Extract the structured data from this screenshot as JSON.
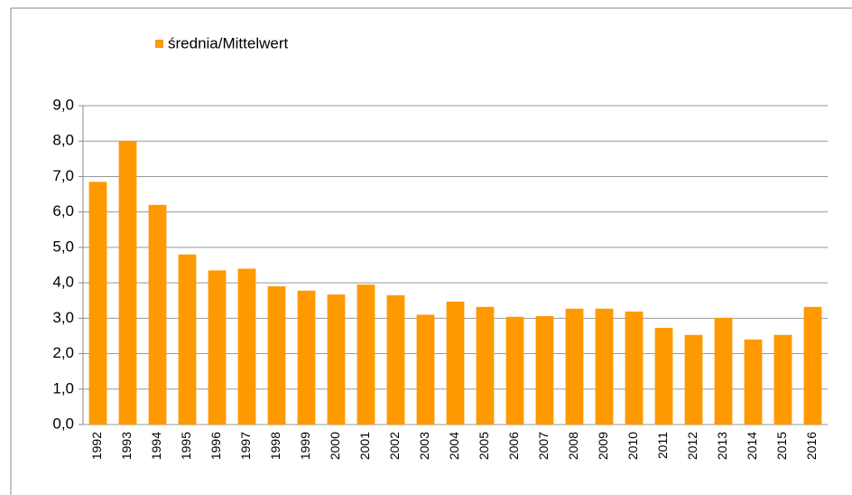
{
  "chart_data": {
    "type": "bar",
    "legend_label": "średnia/Mittelwert",
    "categories": [
      "1992",
      "1993",
      "1994",
      "1995",
      "1996",
      "1997",
      "1998",
      "1999",
      "2000",
      "2001",
      "2002",
      "2003",
      "2004",
      "2005",
      "2006",
      "2007",
      "2008",
      "2009",
      "2010",
      "2011",
      "2012",
      "2013",
      "2014",
      "2015",
      "2016"
    ],
    "values": [
      6.85,
      8.0,
      6.2,
      4.8,
      4.35,
      4.4,
      3.9,
      3.78,
      3.67,
      3.95,
      3.65,
      3.1,
      3.47,
      3.32,
      3.04,
      3.06,
      3.27,
      3.27,
      3.19,
      2.73,
      2.53,
      3.01,
      2.4,
      2.53,
      3.32
    ],
    "color": "#ff9900",
    "ylim": [
      0,
      9
    ],
    "yticks": [
      {
        "value": 0,
        "label": "0,0"
      },
      {
        "value": 1,
        "label": "1,0"
      },
      {
        "value": 2,
        "label": "2,0"
      },
      {
        "value": 3,
        "label": "3,0"
      },
      {
        "value": 4,
        "label": "4,0"
      },
      {
        "value": 5,
        "label": "5,0"
      },
      {
        "value": 6,
        "label": "6,0"
      },
      {
        "value": 7,
        "label": "7,0"
      },
      {
        "value": 8,
        "label": "8,0"
      },
      {
        "value": 9,
        "label": "9,0"
      }
    ],
    "grid": true,
    "legend": "top-left"
  }
}
